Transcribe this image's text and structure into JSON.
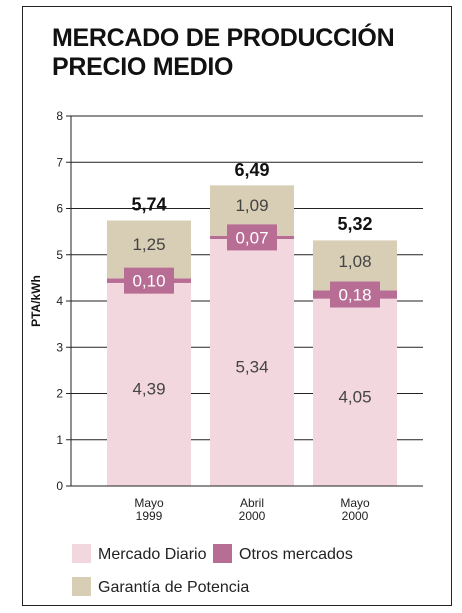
{
  "title_lines": [
    "MERCADO DE PRODUCCIÓN",
    "PRECIO MEDIO"
  ],
  "colors": {
    "mercado_diario": "#f2d7df",
    "otros_mercados": "#b86d95",
    "garantia_potencia": "#d8cdb5"
  },
  "chart_data": {
    "type": "bar",
    "stacked": true,
    "categories": [
      [
        "Mayo",
        "1999"
      ],
      [
        "Abril",
        "2000"
      ],
      [
        "Mayo",
        "2000"
      ]
    ],
    "series": [
      {
        "name": "Mercado Diario",
        "values": [
          4.39,
          5.34,
          4.05
        ],
        "labels": [
          "4,39",
          "5,34",
          "4,05"
        ]
      },
      {
        "name": "Otros mercados",
        "values": [
          0.1,
          0.07,
          0.18
        ],
        "labels": [
          "0,10",
          "0,07",
          "0,18"
        ]
      },
      {
        "name": "Garantía de Potencia",
        "values": [
          1.25,
          1.09,
          1.08
        ],
        "labels": [
          "1,25",
          "1,09",
          "1,08"
        ]
      }
    ],
    "totals": [
      5.74,
      6.49,
      5.32
    ],
    "total_labels": [
      "5,74",
      "6,49",
      "5,32"
    ],
    "ylabel": "PTA/kWh",
    "ylim": [
      0,
      8
    ],
    "yticks": [
      0,
      1,
      2,
      3,
      4,
      5,
      6,
      7,
      8
    ],
    "grid": true,
    "legend_position": "bottom"
  }
}
